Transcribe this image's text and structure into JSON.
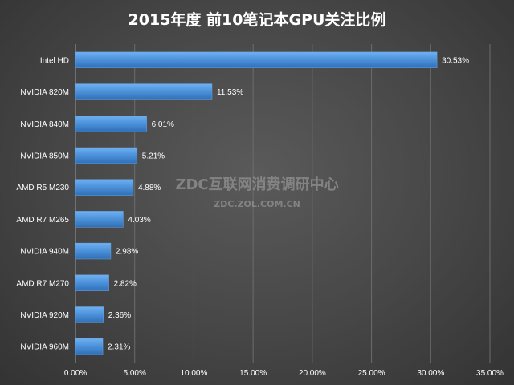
{
  "chart_data": {
    "type": "bar",
    "orientation": "horizontal",
    "title": "2015年度 前10笔记本GPU关注比例",
    "categories": [
      "Intel HD",
      "NVIDIA 820M",
      "NVIDIA 840M",
      "NVIDIA 850M",
      "AMD R5 M230",
      "AMD R7 M265",
      "NVIDIA 940M",
      "AMD R7 M270",
      "NVIDIA 920M",
      "NVIDIA 960M"
    ],
    "values": [
      30.53,
      11.53,
      6.01,
      5.21,
      4.88,
      4.03,
      2.98,
      2.82,
      2.36,
      2.31
    ],
    "data_labels": [
      "30.53%",
      "11.53%",
      "6.01%",
      "5.21%",
      "4.88%",
      "4.03%",
      "2.98%",
      "2.82%",
      "2.36%",
      "2.31%"
    ],
    "xlim": [
      0,
      35
    ],
    "x_ticks": [
      0,
      5,
      10,
      15,
      20,
      25,
      30,
      35
    ],
    "x_tick_labels": [
      "0.00%",
      "5.00%",
      "10.00%",
      "15.00%",
      "20.00%",
      "25.00%",
      "30.00%",
      "35.00%"
    ],
    "xlabel": "",
    "ylabel": "",
    "grid": true,
    "bar_color": "#4a90d9"
  },
  "watermark": {
    "line1": "ZDC互联网消费调研中心",
    "line2": "ZDC.ZOL.COM.CN"
  }
}
